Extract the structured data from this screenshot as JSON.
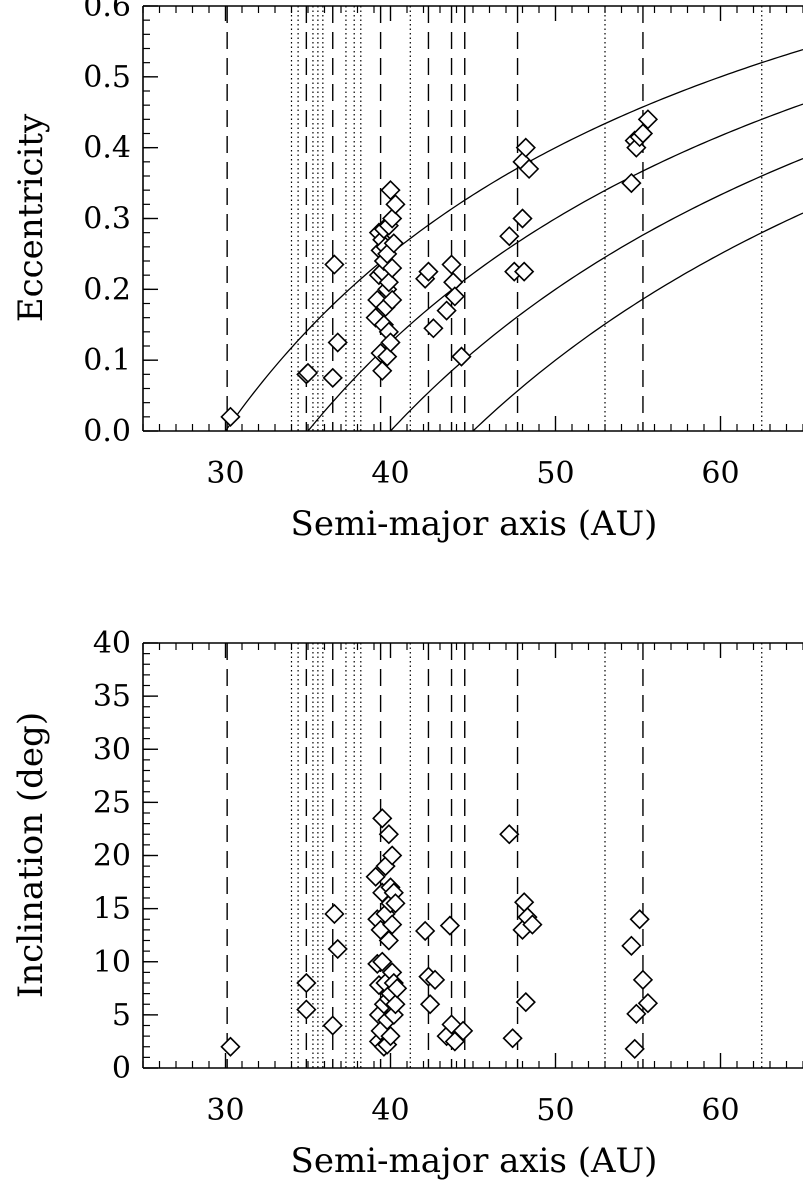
{
  "chart_data": [
    {
      "type": "scatter",
      "xlabel": "Semi-major axis (AU)",
      "ylabel": "Eccentricity",
      "xlim": [
        25,
        65
      ],
      "ylim": [
        0,
        0.6
      ],
      "x_ticks": [
        30,
        40,
        50,
        60
      ],
      "y_ticks": [
        0.0,
        0.1,
        0.2,
        0.3,
        0.4,
        0.5,
        0.6
      ],
      "y_tick_labels": [
        "0.0",
        "0.1",
        "0.2",
        "0.3",
        "0.4",
        "0.5",
        "0.6"
      ],
      "x_minor_step": 1,
      "y_minor_step": 0.02,
      "marker": "diamond",
      "grid": false,
      "resonances_dashed": [
        30.1,
        34.9,
        36.5,
        39.4,
        42.3,
        43.7,
        44.5,
        47.7,
        55.3
      ],
      "resonances_dotted": [
        34.0,
        34.4,
        35.3,
        35.6,
        35.9,
        37.3,
        37.8,
        38.2,
        41.2,
        53.0,
        62.5
      ],
      "perihelion_curves_q": [
        30,
        35,
        40,
        45
      ],
      "points": [
        [
          30.3,
          0.02
        ],
        [
          34.9,
          0.08
        ],
        [
          35.0,
          0.082
        ],
        [
          36.5,
          0.075
        ],
        [
          36.6,
          0.235
        ],
        [
          36.8,
          0.125
        ],
        [
          39.1,
          0.16
        ],
        [
          39.2,
          0.185
        ],
        [
          39.3,
          0.22
        ],
        [
          39.3,
          0.28
        ],
        [
          39.4,
          0.11
        ],
        [
          39.4,
          0.255
        ],
        [
          39.5,
          0.085
        ],
        [
          39.5,
          0.225
        ],
        [
          39.5,
          0.27
        ],
        [
          39.6,
          0.15
        ],
        [
          39.6,
          0.24
        ],
        [
          39.6,
          0.285
        ],
        [
          39.7,
          0.175
        ],
        [
          39.7,
          0.26
        ],
        [
          39.8,
          0.105
        ],
        [
          39.8,
          0.2
        ],
        [
          39.8,
          0.25
        ],
        [
          39.9,
          0.14
        ],
        [
          39.9,
          0.21
        ],
        [
          39.9,
          0.29
        ],
        [
          40.0,
          0.125
        ],
        [
          40.0,
          0.34
        ],
        [
          40.1,
          0.185
        ],
        [
          40.1,
          0.23
        ],
        [
          40.1,
          0.3
        ],
        [
          40.2,
          0.265
        ],
        [
          40.3,
          0.32
        ],
        [
          42.1,
          0.215
        ],
        [
          42.3,
          0.225
        ],
        [
          42.6,
          0.145
        ],
        [
          43.4,
          0.17
        ],
        [
          43.7,
          0.235
        ],
        [
          43.8,
          0.21
        ],
        [
          43.9,
          0.19
        ],
        [
          44.3,
          0.105
        ],
        [
          47.2,
          0.275
        ],
        [
          47.5,
          0.225
        ],
        [
          48.0,
          0.3
        ],
        [
          48.0,
          0.38
        ],
        [
          48.1,
          0.225
        ],
        [
          48.2,
          0.4
        ],
        [
          48.4,
          0.37
        ],
        [
          54.6,
          0.35
        ],
        [
          54.8,
          0.41
        ],
        [
          54.9,
          0.4
        ],
        [
          55.1,
          0.415
        ],
        [
          55.3,
          0.42
        ],
        [
          55.6,
          0.44
        ]
      ]
    },
    {
      "type": "scatter",
      "xlabel": "Semi-major axis (AU)",
      "ylabel": "Inclination (deg)",
      "xlim": [
        25,
        65
      ],
      "ylim": [
        0,
        40
      ],
      "x_ticks": [
        30,
        40,
        50,
        60
      ],
      "y_ticks": [
        0,
        5,
        10,
        15,
        20,
        25,
        30,
        35,
        40
      ],
      "y_tick_labels": [
        "0",
        "5",
        "10",
        "15",
        "20",
        "25",
        "30",
        "35",
        "40"
      ],
      "x_minor_step": 1,
      "y_minor_step": 1,
      "marker": "diamond",
      "grid": false,
      "resonances_dashed": [
        30.1,
        34.9,
        36.5,
        39.4,
        42.3,
        43.7,
        44.5,
        47.7,
        55.3
      ],
      "resonances_dotted": [
        34.0,
        34.4,
        35.3,
        35.6,
        35.9,
        37.3,
        37.8,
        38.2,
        41.2,
        53.0,
        62.5
      ],
      "points": [
        [
          30.3,
          2
        ],
        [
          34.9,
          8
        ],
        [
          34.9,
          5.5
        ],
        [
          36.5,
          4
        ],
        [
          36.6,
          14.5
        ],
        [
          36.8,
          11.2
        ],
        [
          39.1,
          18
        ],
        [
          39.2,
          14
        ],
        [
          39.2,
          9.8
        ],
        [
          39.3,
          7.8
        ],
        [
          39.3,
          5
        ],
        [
          39.3,
          2.5
        ],
        [
          39.4,
          13
        ],
        [
          39.4,
          3.5
        ],
        [
          39.5,
          23.5
        ],
        [
          39.5,
          16.5
        ],
        [
          39.5,
          10
        ],
        [
          39.6,
          6
        ],
        [
          39.6,
          2
        ],
        [
          39.7,
          19
        ],
        [
          39.7,
          14.5
        ],
        [
          39.7,
          8
        ],
        [
          39.8,
          4.5
        ],
        [
          39.8,
          2.2
        ],
        [
          39.9,
          22
        ],
        [
          39.9,
          12
        ],
        [
          39.9,
          6.5
        ],
        [
          40.0,
          17
        ],
        [
          40.0,
          15.5
        ],
        [
          40.0,
          7
        ],
        [
          40.0,
          3
        ],
        [
          40.1,
          20
        ],
        [
          40.1,
          13.5
        ],
        [
          40.1,
          9
        ],
        [
          40.2,
          16.5
        ],
        [
          40.2,
          8
        ],
        [
          40.2,
          5
        ],
        [
          40.3,
          15.5
        ],
        [
          40.3,
          6
        ],
        [
          40.4,
          7.5
        ],
        [
          42.1,
          12.9
        ],
        [
          42.3,
          8.6
        ],
        [
          42.4,
          6
        ],
        [
          42.7,
          8.3
        ],
        [
          43.4,
          3
        ],
        [
          43.6,
          13.4
        ],
        [
          43.7,
          4.1
        ],
        [
          43.9,
          2.5
        ],
        [
          44.4,
          3.5
        ],
        [
          47.2,
          22
        ],
        [
          47.4,
          2.8
        ],
        [
          48.0,
          13
        ],
        [
          48.1,
          15.6
        ],
        [
          48.2,
          6.2
        ],
        [
          48.3,
          14.2
        ],
        [
          48.6,
          13.5
        ],
        [
          54.6,
          11.5
        ],
        [
          54.8,
          1.8
        ],
        [
          54.9,
          5.1
        ],
        [
          55.1,
          14
        ],
        [
          55.3,
          8.3
        ],
        [
          55.6,
          6.1
        ]
      ]
    }
  ]
}
